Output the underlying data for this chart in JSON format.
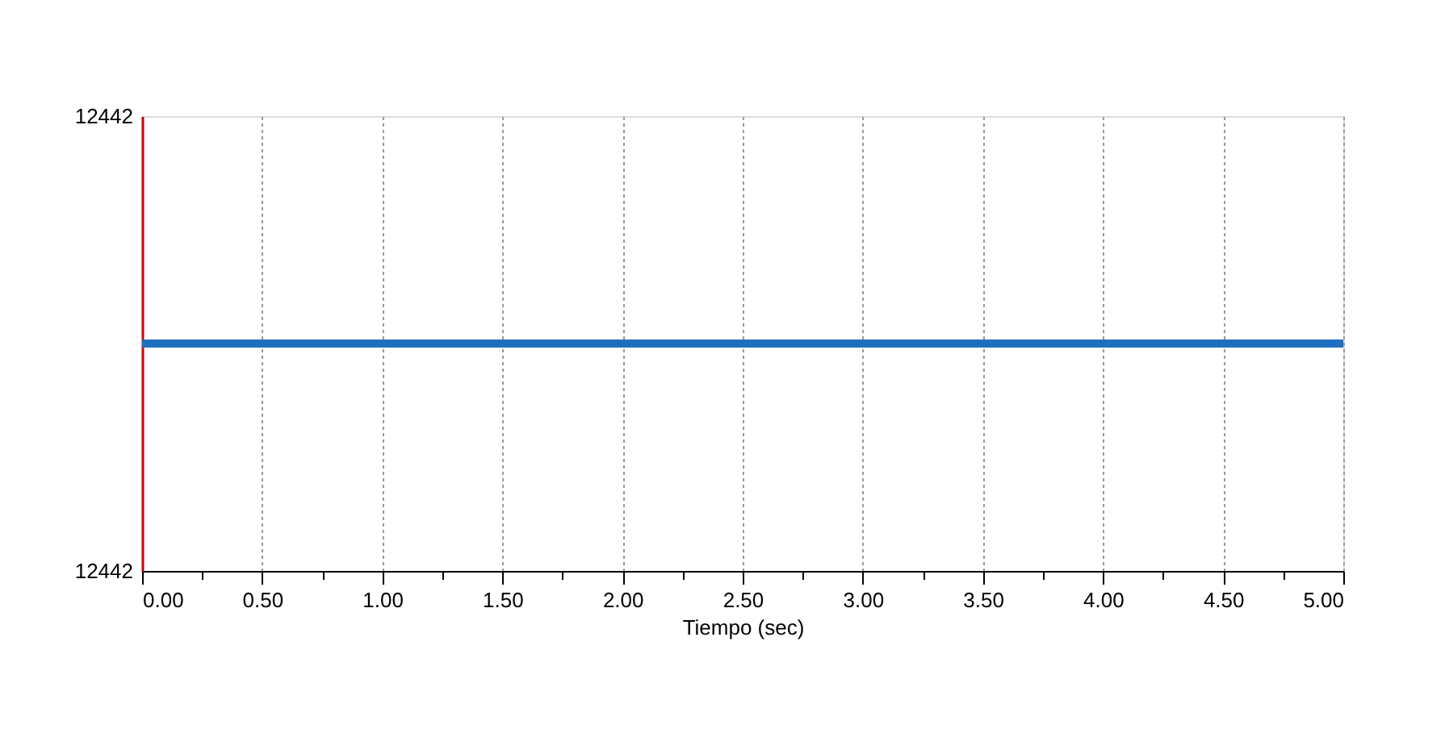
{
  "chart_data": {
    "type": "line",
    "xlabel": "Tiempo (sec)",
    "x": [
      0,
      5
    ],
    "series": [
      {
        "color": "#1f6fc0",
        "values": [
          12442,
          12442
        ]
      }
    ],
    "xlim": [
      0,
      5
    ],
    "xticks": [
      {
        "value": 0,
        "label": "0.00"
      },
      {
        "value": 0.25,
        "label": null
      },
      {
        "value": 0.5,
        "label": "0.50"
      },
      {
        "value": 0.75,
        "label": null
      },
      {
        "value": 1,
        "label": "1.00"
      },
      {
        "value": 1.25,
        "label": null
      },
      {
        "value": 1.5,
        "label": "1.50"
      },
      {
        "value": 1.75,
        "label": null
      },
      {
        "value": 2,
        "label": "2.00"
      },
      {
        "value": 2.25,
        "label": null
      },
      {
        "value": 2.5,
        "label": "2.50"
      },
      {
        "value": 2.75,
        "label": null
      },
      {
        "value": 3,
        "label": "3.00"
      },
      {
        "value": 3.25,
        "label": null
      },
      {
        "value": 3.5,
        "label": "3.50"
      },
      {
        "value": 3.75,
        "label": null
      },
      {
        "value": 4,
        "label": "4.00"
      },
      {
        "value": 4.25,
        "label": null
      },
      {
        "value": 4.5,
        "label": "4.50"
      },
      {
        "value": 4.75,
        "label": null
      },
      {
        "value": 5,
        "label": "5.00"
      }
    ],
    "ylim": [
      12441.5,
      12442.5
    ],
    "yticks": [
      {
        "value": 12441.5,
        "label": "12442"
      },
      {
        "value": 12442.5,
        "label": "12442"
      }
    ],
    "grid": "x",
    "legend": false,
    "marker": "none",
    "line_style": "solid"
  }
}
